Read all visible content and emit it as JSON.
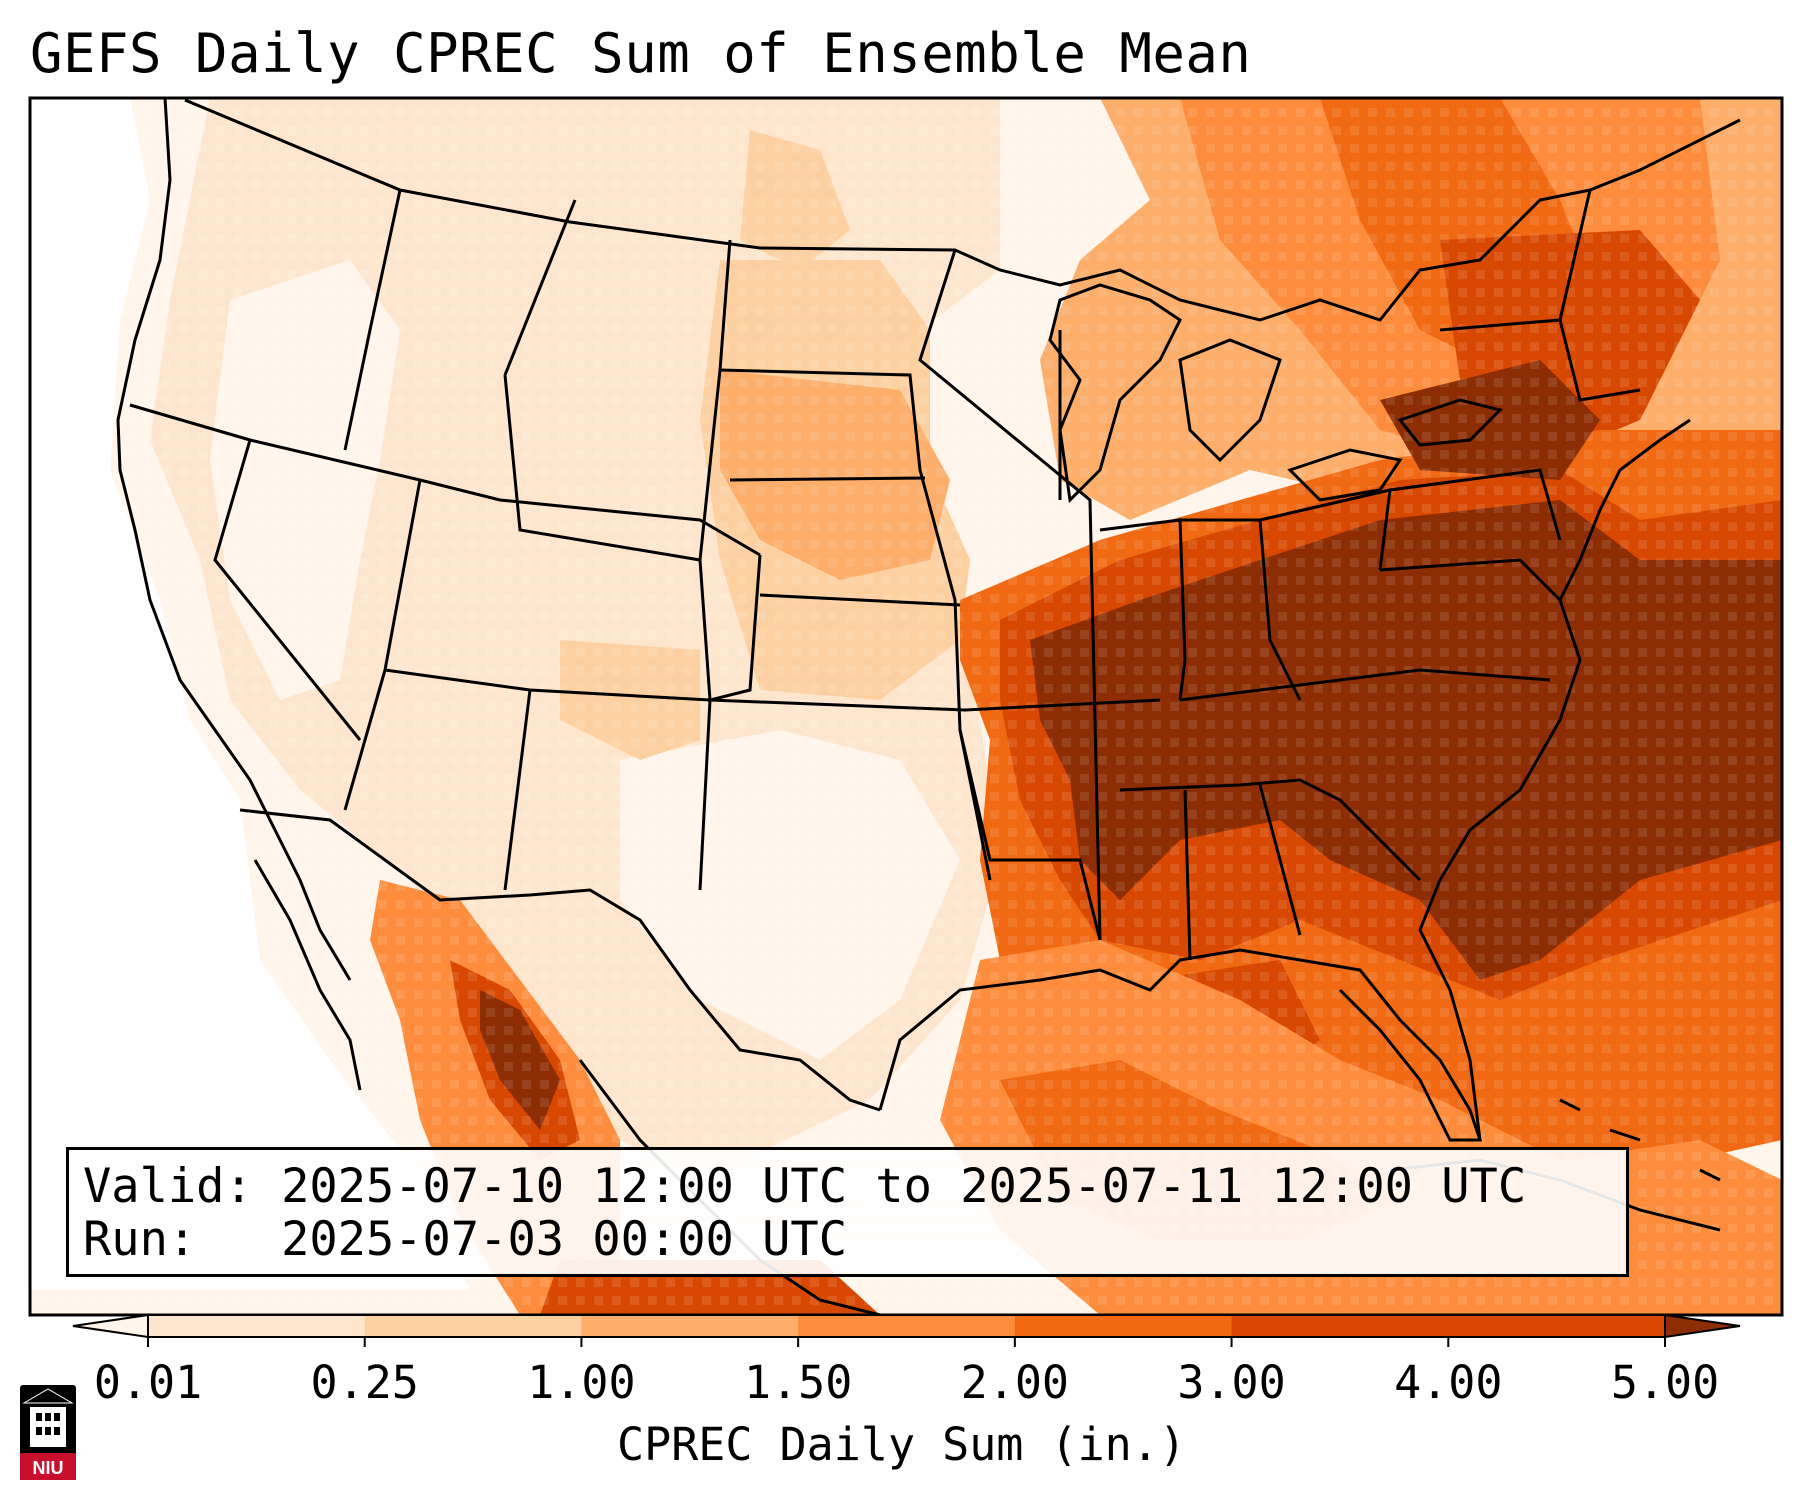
{
  "title": "GEFS Daily CPREC Sum of Ensemble Mean",
  "valid_line": "Valid: 2025-07-10 12:00 UTC to 2025-07-11 12:00 UTC",
  "run_line": "Run:   2025-07-03 00:00 UTC",
  "colorbar": {
    "label": "CPREC Daily Sum (in.)",
    "ticks": [
      "0.01",
      "0.25",
      "1.00",
      "1.50",
      "2.00",
      "3.00",
      "4.00",
      "5.00"
    ],
    "colors": [
      "#fff5eb",
      "#fee6ce",
      "#fdd0a2",
      "#fdae6b",
      "#fd8d3c",
      "#f16913",
      "#d94801",
      "#8c2d04"
    ],
    "extend": "both"
  },
  "logo": {
    "text": "NIU",
    "colors": {
      "tower": "#000000",
      "band": "#c8102e"
    }
  },
  "map": {
    "region": "Continental United States, Mexico and Caribbean",
    "heaviest_precip_areas": [
      "Southeast United States",
      "Ohio Valley",
      "Mid-Atlantic",
      "Western Atlantic",
      "Sierra Madre Occidental (Mexico)"
    ]
  }
}
